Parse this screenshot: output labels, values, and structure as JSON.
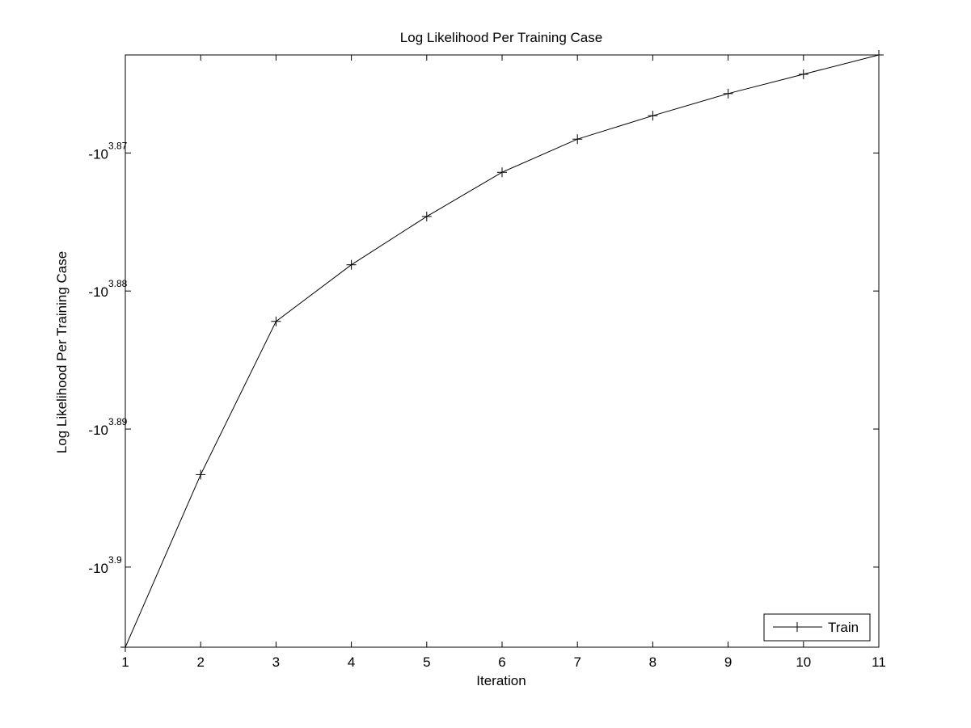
{
  "chart_data": {
    "type": "line",
    "title": "Log Likelihood Per Training Case",
    "xlabel": "Iteration",
    "ylabel": "Log Likelihood Per Training Case",
    "x": [
      1,
      2,
      3,
      4,
      5,
      6,
      7,
      8,
      9,
      10,
      11
    ],
    "xlim": [
      1,
      11
    ],
    "xticks": [
      "1",
      "2",
      "3",
      "4",
      "5",
      "6",
      "7",
      "8",
      "9",
      "10",
      "11"
    ],
    "y_scale": "log",
    "y_axis_note": "values plotted as -10^exponent; ticks show the exponent",
    "y_exponent_lim": [
      3.9058,
      3.8629
    ],
    "y_ticks": [
      {
        "base": "-10",
        "exp": "3.87",
        "value": 3.87
      },
      {
        "base": "-10",
        "exp": "3.88",
        "value": 3.88
      },
      {
        "base": "-10",
        "exp": "3.89",
        "value": 3.89
      },
      {
        "base": "-10",
        "exp": "3.9",
        "value": 3.9
      }
    ],
    "series": [
      {
        "name": "Train",
        "marker": "+",
        "color": "#000000",
        "y_exponents": [
          3.9058,
          3.8933,
          3.8822,
          3.8781,
          3.8746,
          3.8714,
          3.869,
          3.8673,
          3.8657,
          3.8643,
          3.8629
        ]
      }
    ],
    "legend": {
      "position": "bottom-right",
      "entries": [
        "Train"
      ]
    },
    "grid": false
  }
}
